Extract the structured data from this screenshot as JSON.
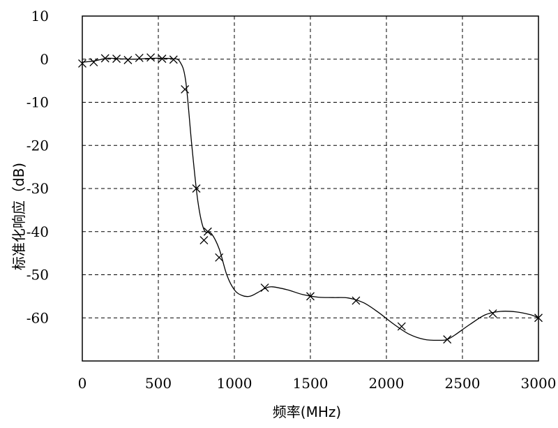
{
  "chart_data": {
    "type": "line",
    "title": "",
    "xlabel": "频率(MHz)",
    "ylabel": "标准化响应（dB)",
    "xlim": [
      0,
      3000
    ],
    "ylim": [
      -70,
      10
    ],
    "xticks": [
      0,
      500,
      1000,
      1500,
      2000,
      2500,
      3000
    ],
    "yticks": [
      10,
      0,
      -10,
      -20,
      -30,
      -40,
      -50,
      -60
    ],
    "xtick_labels": [
      "0",
      "500",
      "1000",
      "1500",
      "2000",
      "2500",
      "3000"
    ],
    "ytick_labels": [
      "10",
      "0",
      "-10",
      "-20",
      "-30",
      "-40",
      "-50",
      "-60"
    ],
    "grid": true,
    "legend": "none",
    "series": [
      {
        "name": "",
        "style": "line",
        "x": [
          0,
          80,
          160,
          240,
          320,
          400,
          460,
          520,
          590,
          640,
          680,
          720,
          760,
          800,
          850,
          900,
          950,
          1000,
          1050,
          1100,
          1150,
          1200,
          1250,
          1350,
          1450,
          1550,
          1650,
          1750,
          1850,
          1950,
          2050,
          2150,
          2250,
          2350,
          2400,
          2450,
          2550,
          2650,
          2750,
          2850,
          2950,
          3000
        ],
        "y": [
          -0.7,
          -0.4,
          0.2,
          0.1,
          0.0,
          0.1,
          0.2,
          0.2,
          0.1,
          -0.5,
          -5,
          -20,
          -33,
          -39.5,
          -40.5,
          -44,
          -50,
          -53.5,
          -54.8,
          -55,
          -54.2,
          -53.2,
          -52.8,
          -53.5,
          -54.6,
          -55.2,
          -55.3,
          -55.4,
          -56.5,
          -58.8,
          -61.5,
          -63.8,
          -65,
          -65.2,
          -65,
          -64,
          -61.5,
          -59.3,
          -58.5,
          -58.6,
          -59.3,
          -60
        ]
      },
      {
        "name": "",
        "style": "markers",
        "marker": "x",
        "x": [
          0,
          75,
          150,
          225,
          300,
          375,
          450,
          525,
          600,
          675,
          750,
          800,
          825,
          900,
          1200,
          1500,
          1800,
          2100,
          2400,
          2700,
          3000
        ],
        "y": [
          -1,
          -0.7,
          0.2,
          0.1,
          -0.2,
          0.3,
          0.4,
          0.1,
          -0.1,
          -7,
          -30,
          -42,
          -40,
          -46,
          -53,
          -55,
          -56,
          -62,
          -65,
          -59,
          -60
        ]
      }
    ]
  }
}
